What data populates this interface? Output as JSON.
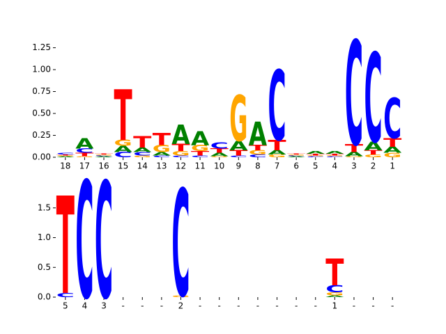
{
  "chart_data": [
    {
      "type": "logo",
      "categories": [
        "18",
        "17",
        "16",
        "15",
        "14",
        "13",
        "12",
        "11",
        "10",
        "9",
        "8",
        "7",
        "6",
        "5",
        "4",
        "3",
        "2",
        "1"
      ],
      "series": [
        {
          "name": "A",
          "color": "#008000",
          "values": [
            0.01,
            0.12,
            0.01,
            0.07,
            0.05,
            0.04,
            0.22,
            0.16,
            0.04,
            0.11,
            0.27,
            0.05,
            0.01,
            0.03,
            0.03,
            0.05,
            0.1,
            0.07
          ]
        },
        {
          "name": "C",
          "color": "#0000ff",
          "values": [
            0.02,
            0.05,
            0.01,
            0.06,
            0.04,
            0.02,
            0.02,
            0.02,
            0.07,
            0.02,
            0.03,
            0.8,
            0.01,
            0.01,
            0.01,
            1.19,
            1.02,
            0.46
          ]
        },
        {
          "name": "G",
          "color": "#ffa500",
          "values": [
            0.01,
            0.01,
            0.01,
            0.07,
            0.02,
            0.08,
            0.05,
            0.07,
            0.01,
            0.52,
            0.05,
            0.03,
            0.01,
            0.01,
            0.01,
            0.01,
            0.03,
            0.05
          ]
        },
        {
          "name": "T",
          "color": "#ff0000",
          "values": [
            0.01,
            0.04,
            0.01,
            0.58,
            0.13,
            0.14,
            0.08,
            0.05,
            0.05,
            0.06,
            0.06,
            0.12,
            0.01,
            0.02,
            0.02,
            0.09,
            0.05,
            0.1
          ]
        }
      ],
      "ylim": [
        0,
        1.35
      ],
      "yticks": [
        {
          "value": 0,
          "label": "0.00"
        },
        0.25,
        {
          "value": 0.5,
          "label": "0.50"
        },
        0.75,
        {
          "value": 1,
          "label": "1.00"
        },
        1.25
      ]
    },
    {
      "type": "logo",
      "categories": [
        "5",
        "4",
        "3",
        "-",
        "-",
        "-",
        "2",
        "-",
        "-",
        "-",
        "-",
        "-",
        "-",
        "-",
        "1",
        "-",
        "-",
        "-"
      ],
      "series": [
        {
          "name": "A",
          "color": "#008000",
          "values": [
            0,
            0,
            0,
            0,
            0,
            0,
            0,
            0,
            0,
            0,
            0,
            0,
            0,
            0,
            0.03,
            0,
            0,
            0
          ]
        },
        {
          "name": "C",
          "color": "#0000ff",
          "values": [
            0.07,
            1.97,
            1.96,
            0,
            0,
            0,
            1.8,
            0,
            0,
            0,
            0,
            0,
            0,
            0,
            0.12,
            0,
            0,
            0
          ]
        },
        {
          "name": "G",
          "color": "#ffa500",
          "values": [
            0,
            0,
            0,
            0,
            0,
            0,
            0.03,
            0,
            0,
            0,
            0,
            0,
            0,
            0,
            0.05,
            0,
            0,
            0
          ]
        },
        {
          "name": "T",
          "color": "#ff0000",
          "values": [
            1.64,
            0,
            0,
            0,
            0,
            0,
            0,
            0,
            0,
            0,
            0,
            0,
            0,
            0,
            0.45,
            0,
            0,
            0
          ]
        }
      ],
      "ylim": [
        0,
        2
      ],
      "yticks": [
        {
          "value": 0,
          "label": "0.0"
        },
        0.5,
        {
          "value": 1,
          "label": "1.0"
        },
        1.5
      ]
    }
  ]
}
